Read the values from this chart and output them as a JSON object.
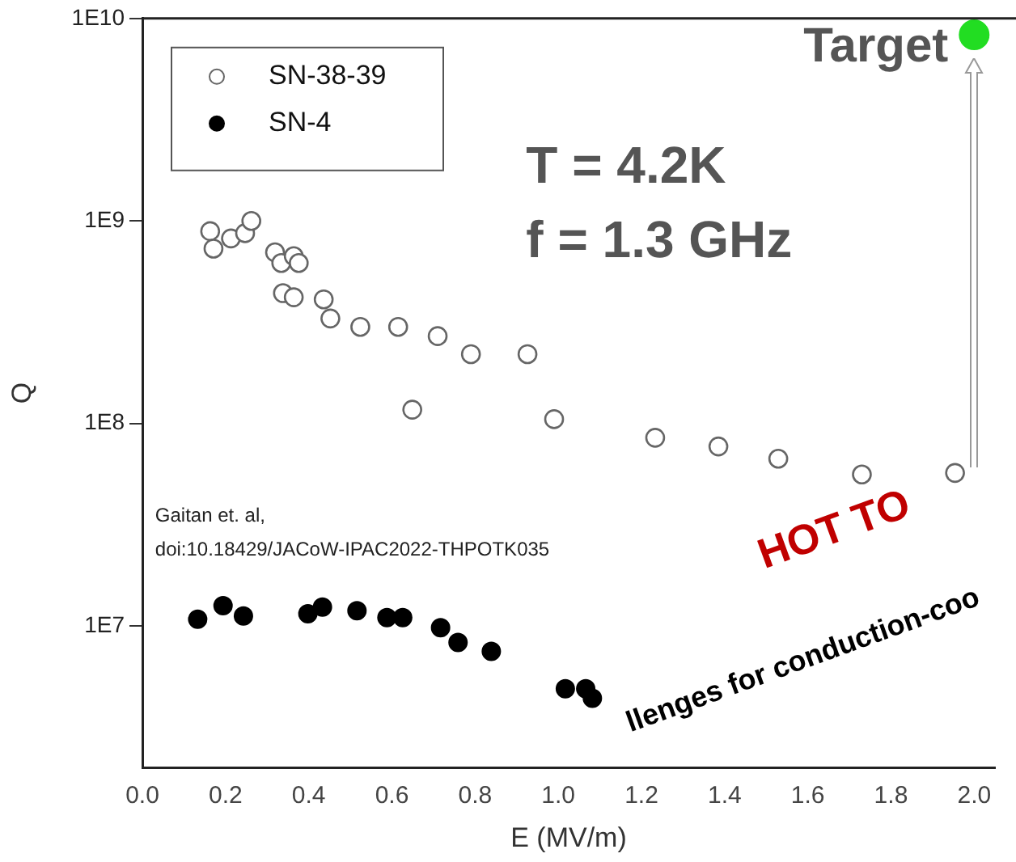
{
  "chart_data": {
    "type": "scatter",
    "xlabel": "E (MV/m)",
    "ylabel": "Q",
    "log": "y",
    "marker": "circle",
    "legend": "top left",
    "grid": false,
    "xlim": [
      0,
      2.05
    ],
    "xticks": [
      {
        "value": 0,
        "label": "0.0"
      },
      0.2,
      0.4,
      0.6,
      0.8,
      {
        "value": 1,
        "label": "1.0"
      },
      1.2,
      1.4,
      1.6,
      1.8,
      {
        "value": 2,
        "label": "2.0"
      }
    ],
    "ylim": [
      2000000,
      10000000000
    ],
    "yticks": [
      {
        "value": 10000000,
        "label": "1E7"
      },
      {
        "value": 100000000,
        "label": "1E8"
      },
      {
        "value": 1000000000,
        "label": "1E9"
      },
      {
        "value": 10000000000,
        "label": "1E10"
      }
    ],
    "series": [
      {
        "name": "SN-38-39",
        "color": "#666666",
        "x": [
          0.163,
          0.171,
          0.213,
          0.247,
          0.262,
          0.319,
          0.334,
          0.364,
          0.376,
          0.338,
          0.364,
          0.436,
          0.452,
          0.524,
          0.615,
          0.71,
          0.79,
          0.926,
          0.649,
          0.99,
          1.233,
          1.385,
          1.529,
          1.73,
          1.954
        ],
        "values": [
          890000000,
          730000000,
          820000000,
          870000000,
          1000000000,
          700000000,
          620000000,
          670000000,
          620000000,
          440000000,
          420000000,
          410000000,
          330000000,
          300000000,
          300000000,
          270000000,
          220000000,
          220000000,
          117000000,
          105000000,
          85000000,
          77000000,
          67000000,
          56000000,
          57000000
        ]
      },
      {
        "name": "SN-4",
        "color": "#000000",
        "x": [
          0.133,
          0.194,
          0.243,
          0.398,
          0.433,
          0.516,
          0.588,
          0.626,
          0.717,
          0.759,
          0.839,
          1.017,
          1.066,
          1.082
        ],
        "values": [
          10800000,
          12600000,
          11200000,
          11500000,
          12400000,
          11900000,
          11000000,
          11000000,
          9800000,
          8300000,
          7500000,
          4900000,
          4900000,
          4400000
        ]
      },
      {
        "color": "#22dd22",
        "x": [
          2.0
        ],
        "values": [
          8300000000
        ]
      }
    ],
    "annotations": [
      "T = 4.2K",
      "f = 1.3 GHz",
      "Gaitan et. al,",
      "doi:10.18429/JACoW-IPAC2022-THPOTK035",
      {
        "text": "Target",
        "x": 2.0,
        "y": 8300000000
      },
      "HOT TO",
      "llenges for conduction-coo"
    ]
  }
}
